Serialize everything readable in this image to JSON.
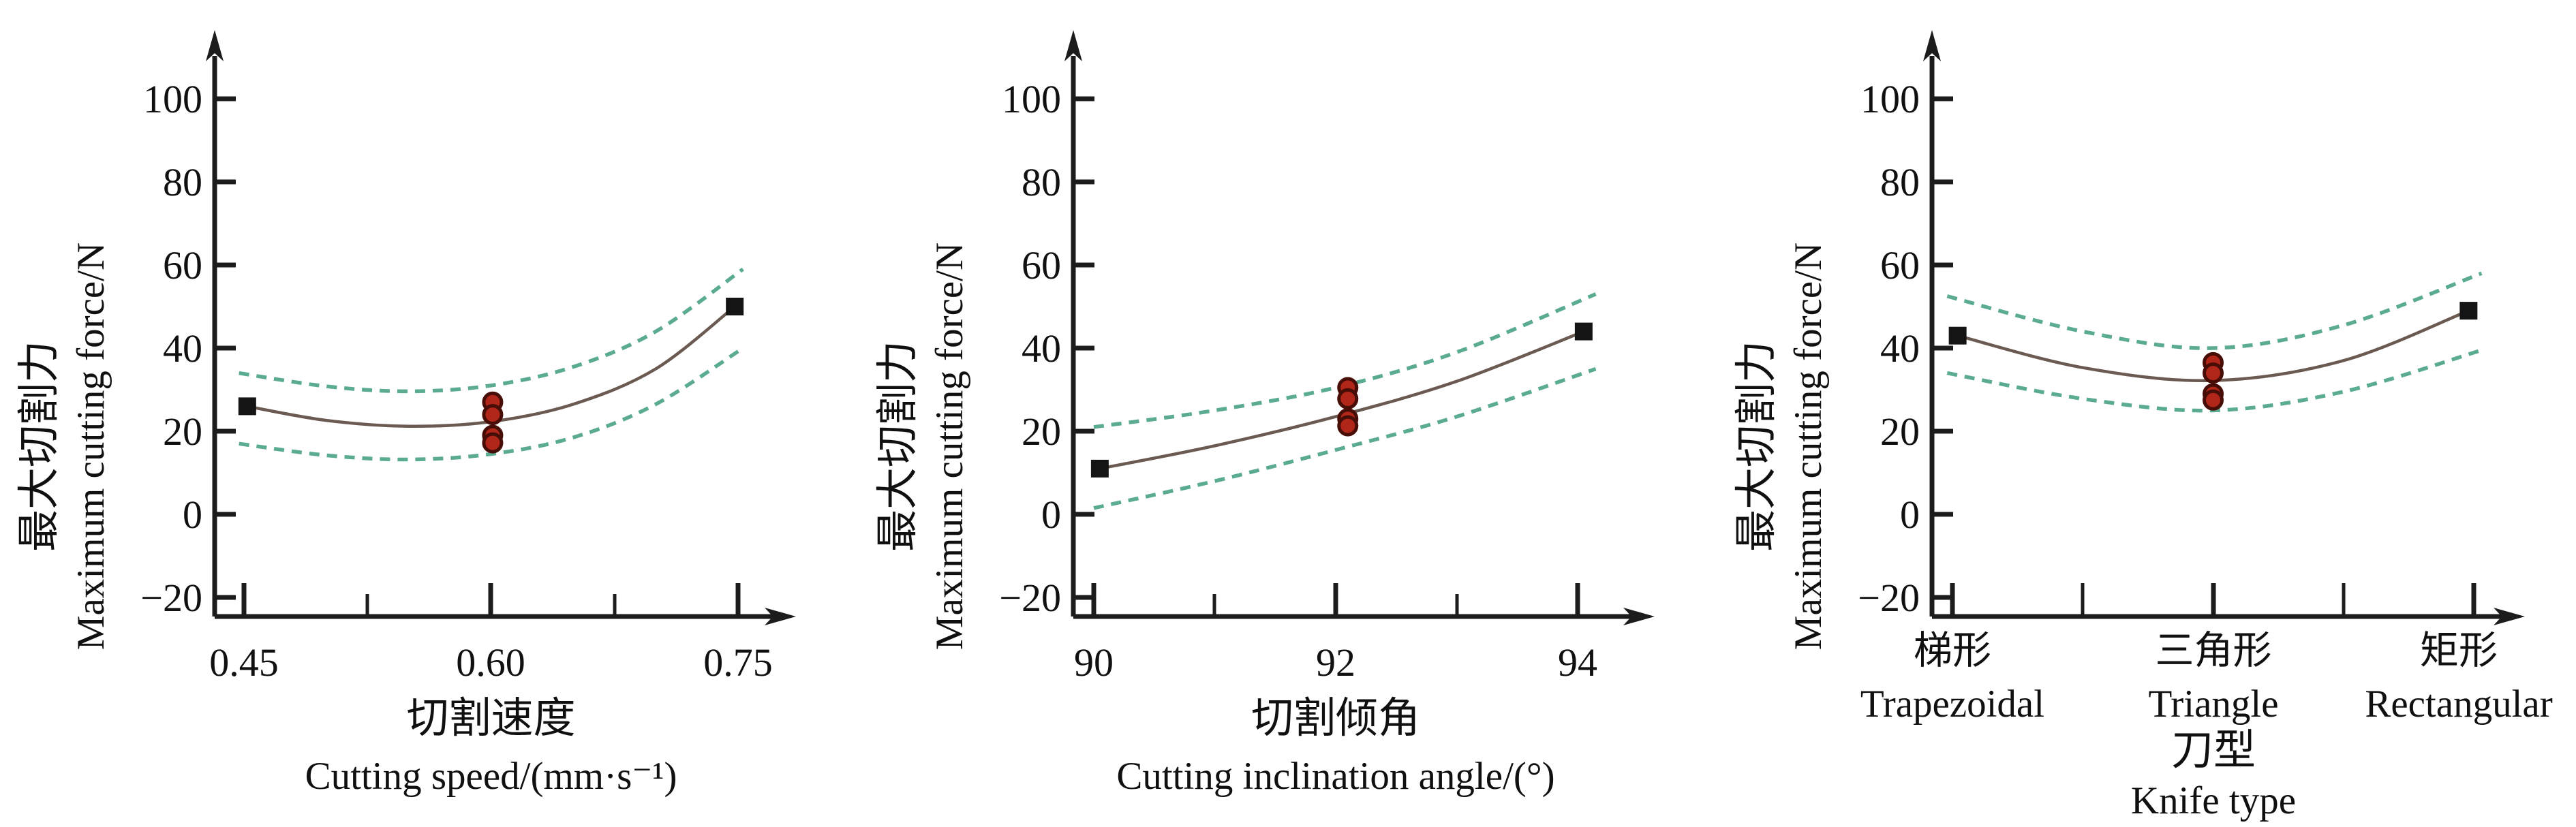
{
  "figure": {
    "background": "#ffffff",
    "description": "Three response plots of maximum cutting force versus cutting speed, cutting inclination angle and knife type, each with a fitted curve, dashed confidence bands, black square design points and red replicate points"
  },
  "colors": {
    "axis": "#1c1c1c",
    "text": "#101010",
    "fit_line": "#6b5a52",
    "confidence_band": "#5bab93",
    "design_point": "#141414",
    "replicate_fill": "#b02618",
    "replicate_stroke": "#470d07"
  },
  "y_axis": {
    "title_cn": "最大切割力",
    "title_en": "Maximum cutting force/N",
    "min": -20,
    "max": 100,
    "ticks": [
      {
        "v": 100,
        "label": "100"
      },
      {
        "v": 80,
        "label": "80"
      },
      {
        "v": 60,
        "label": "60"
      },
      {
        "v": 40,
        "label": "40"
      },
      {
        "v": 20,
        "label": "20"
      },
      {
        "v": 0,
        "label": "0"
      },
      {
        "v": -20,
        "label": "−20"
      }
    ]
  },
  "chart_data": [
    {
      "type": "line",
      "id": "cutting-speed",
      "xlabel_cn": "切割速度",
      "xlabel_en": "Cutting speed/(mm·s⁻¹)",
      "x_axis": {
        "min": 0.45,
        "max": 0.75,
        "ticks": [
          {
            "v": 0.45,
            "label": "0.45"
          },
          {
            "v": 0.6,
            "label": "0.60"
          },
          {
            "v": 0.75,
            "label": "0.75"
          }
        ]
      },
      "series": {
        "fit_line": [
          [
            0.452,
            26
          ],
          [
            0.5,
            22.6
          ],
          [
            0.55,
            21.2
          ],
          [
            0.6,
            22.3
          ],
          [
            0.65,
            26.5
          ],
          [
            0.7,
            35
          ],
          [
            0.748,
            50
          ]
        ],
        "ci_upper": [
          [
            0.447,
            34
          ],
          [
            0.5,
            30.8
          ],
          [
            0.55,
            29.6
          ],
          [
            0.6,
            31
          ],
          [
            0.65,
            35.5
          ],
          [
            0.7,
            44
          ],
          [
            0.753,
            59
          ]
        ],
        "ci_lower": [
          [
            0.447,
            17
          ],
          [
            0.5,
            14.2
          ],
          [
            0.55,
            13.2
          ],
          [
            0.6,
            14.5
          ],
          [
            0.65,
            18.5
          ],
          [
            0.7,
            26.5
          ],
          [
            0.753,
            40
          ]
        ],
        "design_points": [
          [
            0.452,
            26
          ],
          [
            0.748,
            50
          ]
        ],
        "replicate_points": {
          "x": 0.601,
          "values": [
            27,
            24,
            19,
            17.2
          ]
        }
      }
    },
    {
      "type": "line",
      "id": "cutting-inclination-angle",
      "xlabel_cn": "切割倾角",
      "xlabel_en": "Cutting inclination angle/(°)",
      "x_axis": {
        "min": 90,
        "max": 94,
        "ticks": [
          {
            "v": 90,
            "label": "90"
          },
          {
            "v": 92,
            "label": "92"
          },
          {
            "v": 94,
            "label": "94"
          }
        ]
      },
      "series": {
        "fit_line": [
          [
            90.05,
            11
          ],
          [
            91,
            16.5
          ],
          [
            92,
            23.5
          ],
          [
            93,
            32
          ],
          [
            94.05,
            44
          ]
        ],
        "ci_upper": [
          [
            90.0,
            21
          ],
          [
            91,
            25
          ],
          [
            92,
            30.5
          ],
          [
            93,
            39
          ],
          [
            94.15,
            53
          ]
        ],
        "ci_lower": [
          [
            90.0,
            1.5
          ],
          [
            91,
            8
          ],
          [
            92,
            15.5
          ],
          [
            93,
            23.5
          ],
          [
            94.15,
            35
          ]
        ],
        "design_points": [
          [
            90.05,
            11
          ],
          [
            94.05,
            44
          ]
        ],
        "replicate_points": {
          "x": 92.1,
          "values": [
            30.5,
            27.8,
            23,
            21.3
          ]
        }
      }
    },
    {
      "type": "line",
      "id": "knife-type",
      "categorical": true,
      "xlabel_cn": "刀型",
      "xlabel_en": "Knife type",
      "categories": [
        {
          "cn": "梯形",
          "en": "Trapezoidal"
        },
        {
          "cn": "三角形",
          "en": "Triangle"
        },
        {
          "cn": "矩形",
          "en": "Rectangular"
        }
      ],
      "x_axis": {
        "min": 0,
        "max": 2,
        "ticks": []
      },
      "series": {
        "fit_line": [
          [
            0.02,
            43
          ],
          [
            0.5,
            35.3
          ],
          [
            1,
            32.2
          ],
          [
            1.5,
            37
          ],
          [
            1.98,
            49
          ]
        ],
        "ci_upper": [
          [
            -0.02,
            52.5
          ],
          [
            0.5,
            44
          ],
          [
            1,
            40
          ],
          [
            1.5,
            45.5
          ],
          [
            2.03,
            58
          ]
        ],
        "ci_lower": [
          [
            -0.02,
            34
          ],
          [
            0.5,
            27.8
          ],
          [
            1,
            25
          ],
          [
            1.5,
            29.5
          ],
          [
            2.03,
            39.5
          ]
        ],
        "design_points": [
          [
            0.02,
            43
          ],
          [
            1.98,
            49
          ]
        ],
        "replicate_points": {
          "x": 1,
          "values": [
            36.5,
            34,
            29,
            27.5
          ]
        }
      }
    }
  ]
}
